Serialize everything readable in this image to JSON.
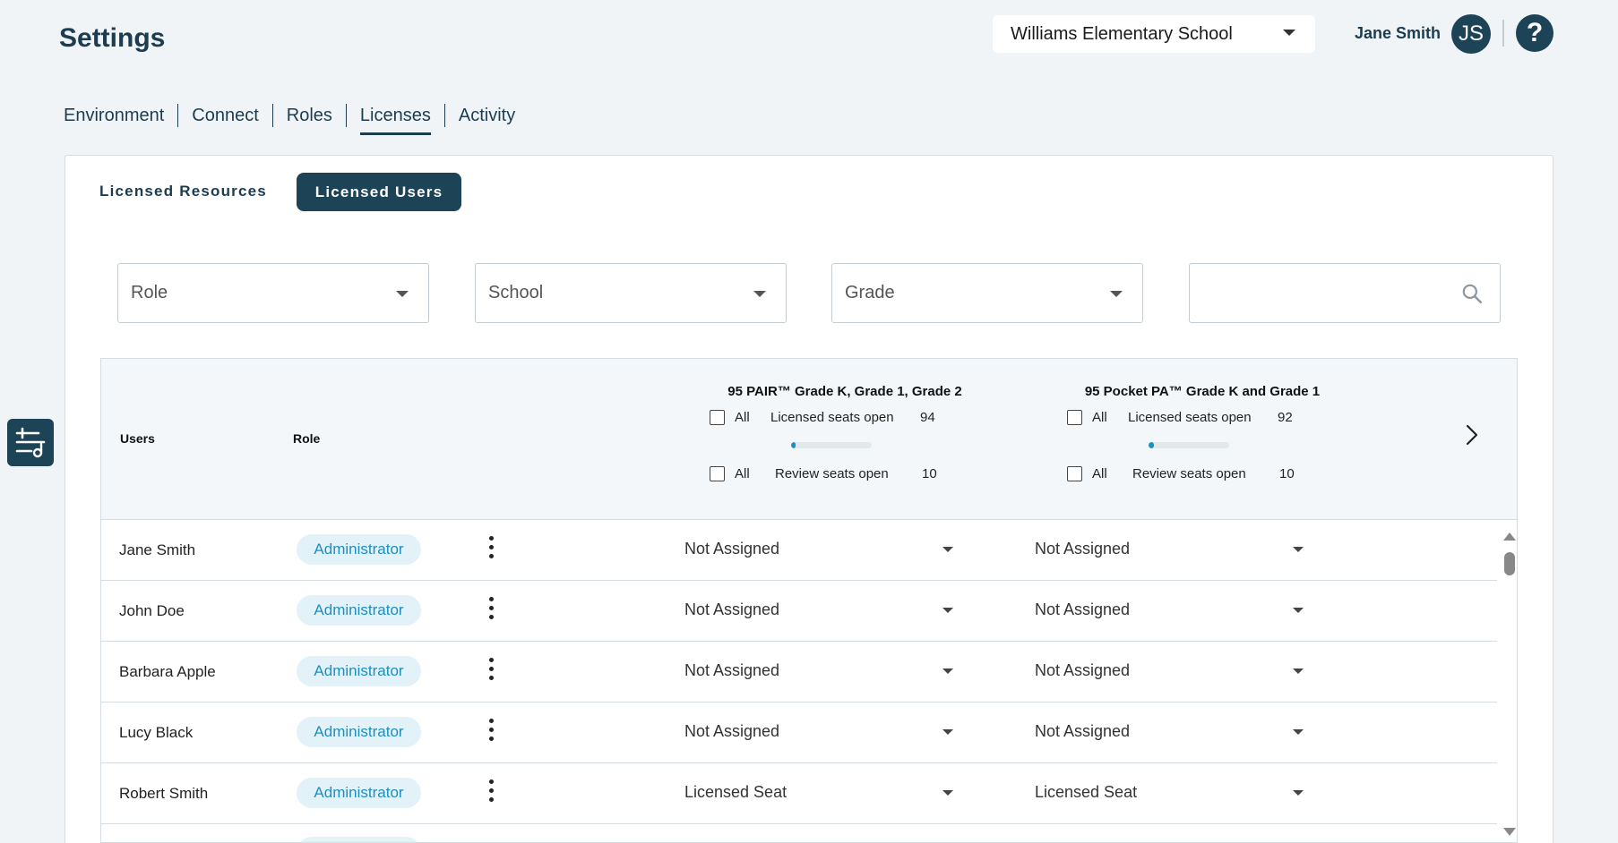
{
  "header": {
    "title": "Settings",
    "school_select": "Williams Elementary School",
    "user_name": "Jane Smith",
    "avatar_initials": "JS",
    "help_glyph": "?"
  },
  "tabs": [
    {
      "label": "Environment",
      "active": false
    },
    {
      "label": "Connect",
      "active": false
    },
    {
      "label": "Roles",
      "active": false
    },
    {
      "label": "Licenses",
      "active": true
    },
    {
      "label": "Activity",
      "active": false
    }
  ],
  "subtabs": {
    "resources": "Licensed Resources",
    "users": "Licensed Users"
  },
  "filters": {
    "role": "Role",
    "school": "School",
    "grade": "Grade",
    "search_placeholder": ""
  },
  "icons": {
    "dropdown": "chevron-down-icon",
    "search": "search-icon",
    "filter_tool": "filter-sliders-icon",
    "next": "chevron-right-icon",
    "more": "more-vertical-icon"
  },
  "table": {
    "users_header": "Users",
    "role_header": "Role",
    "columns": [
      {
        "title": "95 PAIR™ Grade K, Grade 1, Grade 2",
        "all_label": "All",
        "licensed_label": "Licensed seats open",
        "licensed_count": "94",
        "licensed_fill": 0.05,
        "review_label": "Review seats open",
        "review_count": "10"
      },
      {
        "title": "95 Pocket PA™ Grade K and Grade 1",
        "all_label": "All",
        "licensed_label": "Licensed seats open",
        "licensed_count": "92",
        "licensed_fill": 0.07,
        "review_label": "Review seats open",
        "review_count": "10"
      }
    ],
    "rows": [
      {
        "name": "Jane Smith",
        "role": "Administrator",
        "col1": "Not Assigned",
        "col2": "Not Assigned"
      },
      {
        "name": "John Doe",
        "role": "Administrator",
        "col1": "Not Assigned",
        "col2": "Not Assigned"
      },
      {
        "name": "Barbara Apple",
        "role": "Administrator",
        "col1": "Not Assigned",
        "col2": "Not Assigned"
      },
      {
        "name": "Lucy Black",
        "role": "Administrator",
        "col1": "Not Assigned",
        "col2": "Not Assigned"
      },
      {
        "name": "Robert Smith",
        "role": "Administrator",
        "col1": "Licensed Seat",
        "col2": "Licensed Seat"
      }
    ]
  },
  "colors": {
    "primary_dark": "#1d4356",
    "accent_blue": "#1b8fbf",
    "pill_bg": "#e2f2f8",
    "page_bg": "#f0f4f7"
  }
}
